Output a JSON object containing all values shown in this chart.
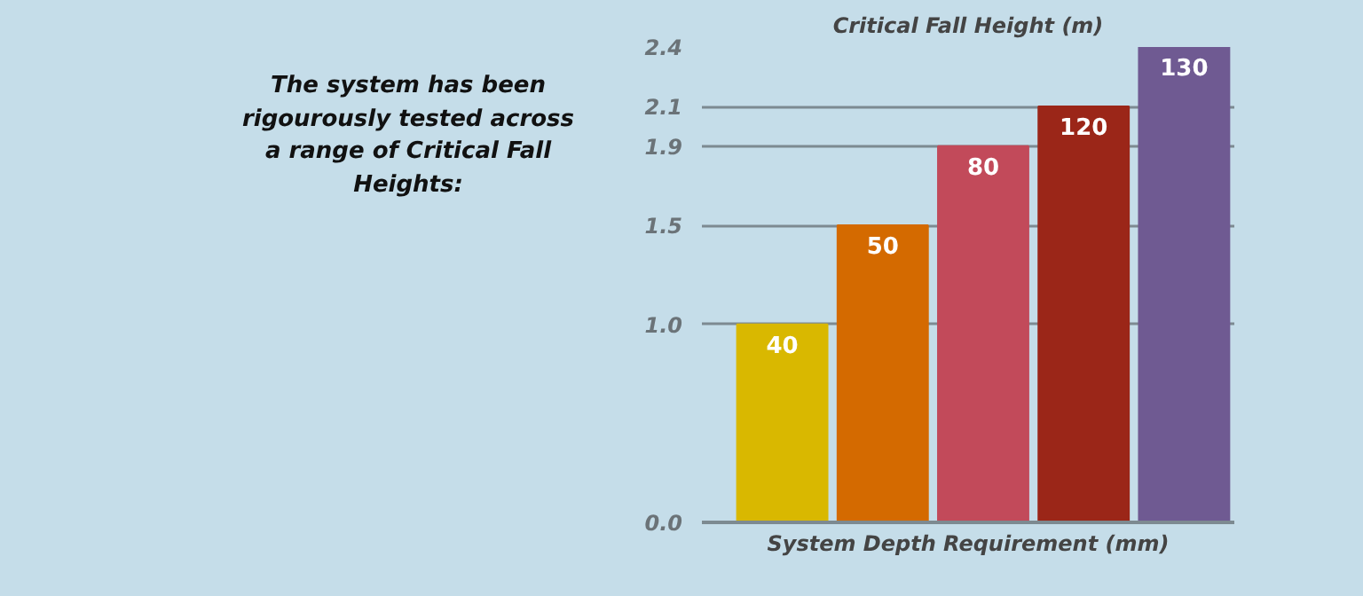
{
  "chart_data": {
    "type": "bar",
    "title": "Critical Fall Height (m)",
    "xlabel": "System Depth Requirement (mm)",
    "categories": [
      "40",
      "50",
      "80",
      "120",
      "130"
    ],
    "values": [
      1.0,
      1.5,
      1.9,
      2.1,
      2.4
    ],
    "colors": [
      "#d9b800",
      "#d46a00",
      "#c24a5a",
      "#9b2618",
      "#6f5a92"
    ],
    "ylim": [
      0,
      2.4
    ],
    "yticks": [
      {
        "value": 0,
        "label": "0.0"
      },
      {
        "value": 1,
        "label": "1.0"
      },
      1.5,
      1.9,
      2.1,
      2.4
    ],
    "grid": "y",
    "annotations": [
      "The system has been rigourously tested across a range of Critical Fall Heights:"
    ]
  }
}
